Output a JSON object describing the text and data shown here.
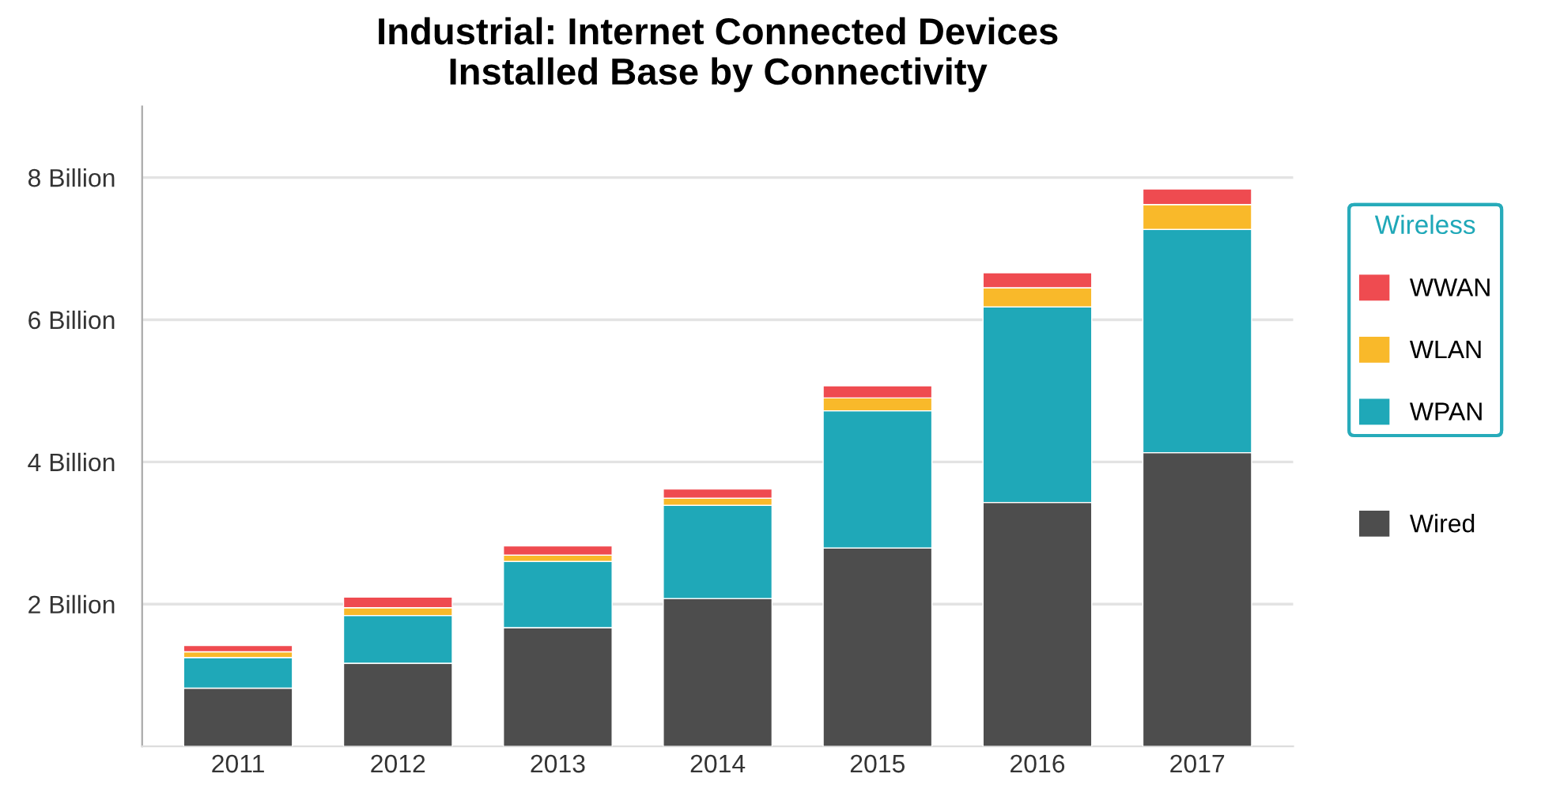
{
  "chart_data": {
    "type": "bar",
    "title": "Industrial: Internet Connected Devices\nInstalled Base by Connectivity",
    "categories": [
      "2011",
      "2012",
      "2013",
      "2014",
      "2015",
      "2016",
      "2017"
    ],
    "stacked": true,
    "series": [
      {
        "name": "Wired",
        "color": "#4d4d4d",
        "values": [
          0.82,
          1.17,
          1.67,
          2.08,
          2.79,
          3.43,
          4.13
        ]
      },
      {
        "name": "WPAN",
        "color": "#1fa8b8",
        "values": [
          0.43,
          0.67,
          0.93,
          1.31,
          1.93,
          2.75,
          3.14
        ]
      },
      {
        "name": "WLAN",
        "color": "#f9b92a",
        "values": [
          0.08,
          0.11,
          0.09,
          0.1,
          0.18,
          0.27,
          0.35
        ]
      },
      {
        "name": "WWAN",
        "color": "#ef4b50",
        "values": [
          0.09,
          0.15,
          0.13,
          0.13,
          0.17,
          0.21,
          0.22
        ]
      }
    ],
    "legend_title": "Wireless",
    "legend": "right",
    "ylim": [
      0,
      9
    ],
    "yticks": [
      {
        "value": 2,
        "label": "2 Billion"
      },
      {
        "value": 4,
        "label": "4 Billion"
      },
      {
        "value": 6,
        "label": "6 Billion"
      },
      {
        "value": 8,
        "label": "8 Billion"
      }
    ],
    "grid": "y"
  }
}
